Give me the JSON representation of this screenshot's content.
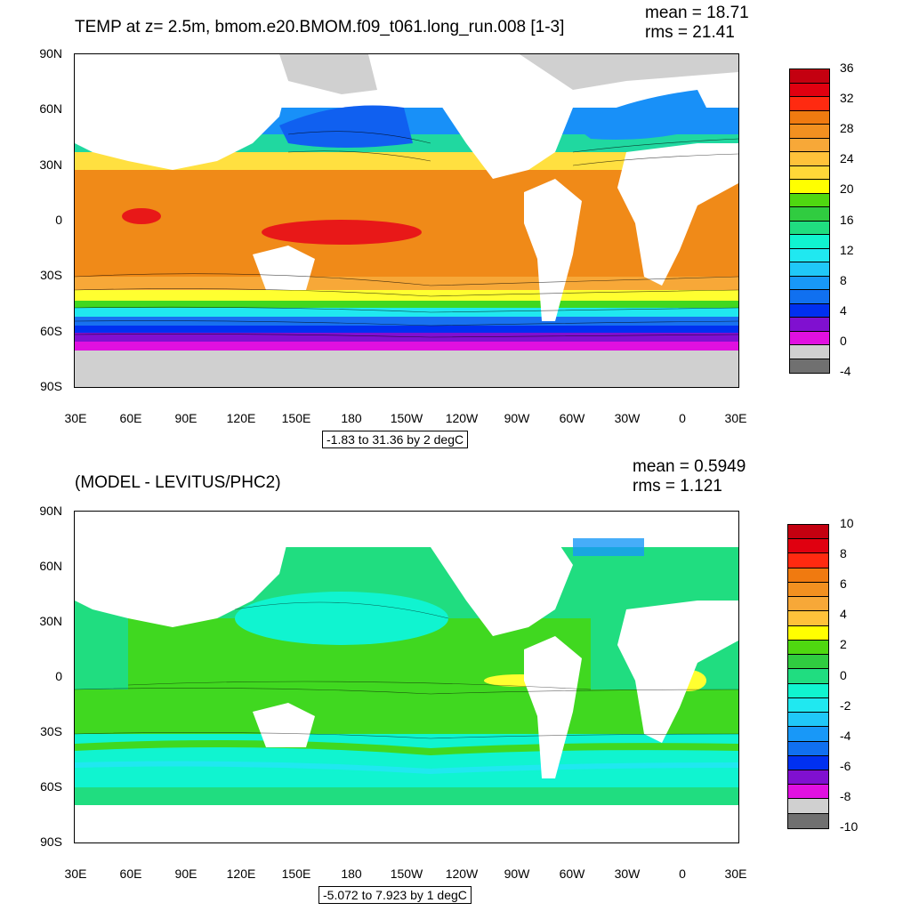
{
  "top": {
    "title": "TEMP at z=   2.5m, bmom.e20.BMOM.f09_t061.long_run.008 [1-3]",
    "mean_text": "mean = 18.71",
    "rms_text": "rms = 21.41",
    "y_labels": [
      "90N",
      "60N",
      "30N",
      "0",
      "30S",
      "60S",
      "90S"
    ],
    "x_labels": [
      "30E",
      "60E",
      "90E",
      "120E",
      "150E",
      "180",
      "150W",
      "120W",
      "90W",
      "60W",
      "30W",
      "0",
      "30E"
    ],
    "range_text": "-1.83 to 31.36 by 2 degC",
    "colorbar_labels": [
      "36",
      "32",
      "28",
      "24",
      "20",
      "16",
      "12",
      "8",
      "4",
      "0",
      "-4"
    ],
    "colorbar_colors": [
      "#c40010",
      "#e00010",
      "#ff2a10",
      "#f07a10",
      "#f29020",
      "#f7a838",
      "#ffc23a",
      "#ffd838",
      "#ffff00",
      "#4fd810",
      "#30cc40",
      "#20dd80",
      "#10f4d0",
      "#20e8f0",
      "#20c8f8",
      "#1898f8",
      "#1070f0",
      "#0030f0",
      "#8010d0",
      "#e010e0",
      "#d0d0d0",
      "#707070"
    ]
  },
  "bottom": {
    "title": "(MODEL - LEVITUS/PHC2)",
    "mean_text": "mean = 0.5949",
    "rms_text": "rms = 1.121",
    "y_labels": [
      "90N",
      "60N",
      "30N",
      "0",
      "30S",
      "60S",
      "90S"
    ],
    "x_labels": [
      "30E",
      "60E",
      "90E",
      "120E",
      "150E",
      "180",
      "150W",
      "120W",
      "90W",
      "60W",
      "30W",
      "0",
      "30E"
    ],
    "range_text": "-5.072 to 7.923 by 1 degC",
    "colorbar_labels": [
      "10",
      "8",
      "6",
      "4",
      "2",
      "0",
      "-2",
      "-4",
      "-6",
      "-8",
      "-10"
    ],
    "colorbar_colors": [
      "#c40010",
      "#e00010",
      "#ff2a10",
      "#f07a10",
      "#f29020",
      "#f7a838",
      "#ffc23a",
      "#ffff00",
      "#4fd810",
      "#30cc40",
      "#20dd80",
      "#10f4d0",
      "#20e8f0",
      "#20c8f8",
      "#1898f8",
      "#1070f0",
      "#0030f0",
      "#8010d0",
      "#e010e0",
      "#d0d0d0",
      "#707070"
    ]
  }
}
